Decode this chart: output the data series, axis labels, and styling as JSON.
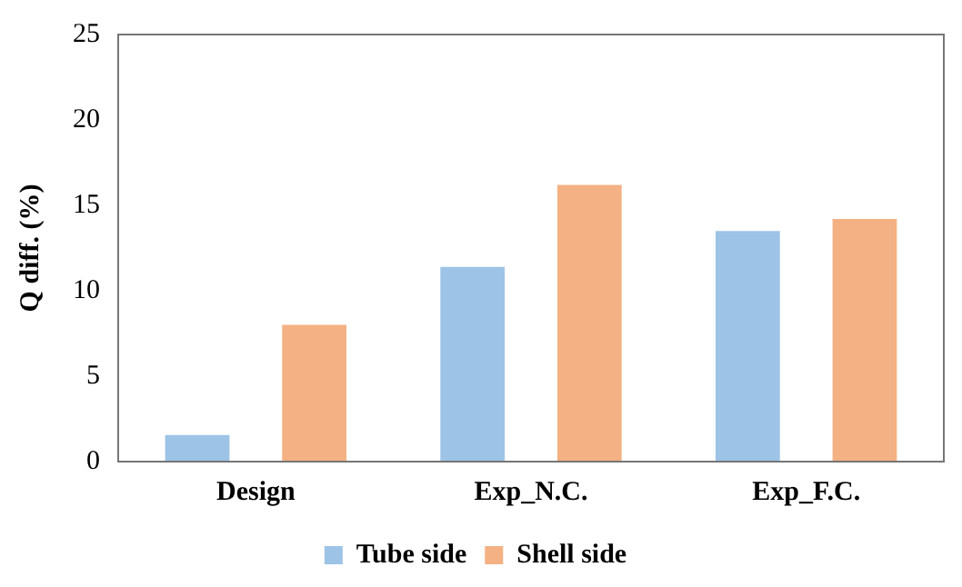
{
  "chart_data": {
    "type": "bar",
    "ylabel": "Q diff. (%)",
    "categories": [
      "Design",
      "Exp_N.C.",
      "Exp_F.C."
    ],
    "series": [
      {
        "name": "Tube side",
        "color": "#9dc3e6",
        "values": [
          1.55,
          11.4,
          13.5
        ]
      },
      {
        "name": "Shell side",
        "color": "#f4b183",
        "values": [
          8.0,
          16.2,
          14.2
        ]
      }
    ],
    "ylim": [
      0,
      25
    ],
    "yticks": [
      0,
      5,
      10,
      15,
      20,
      25
    ],
    "grid": false,
    "legend": "bottom"
  }
}
